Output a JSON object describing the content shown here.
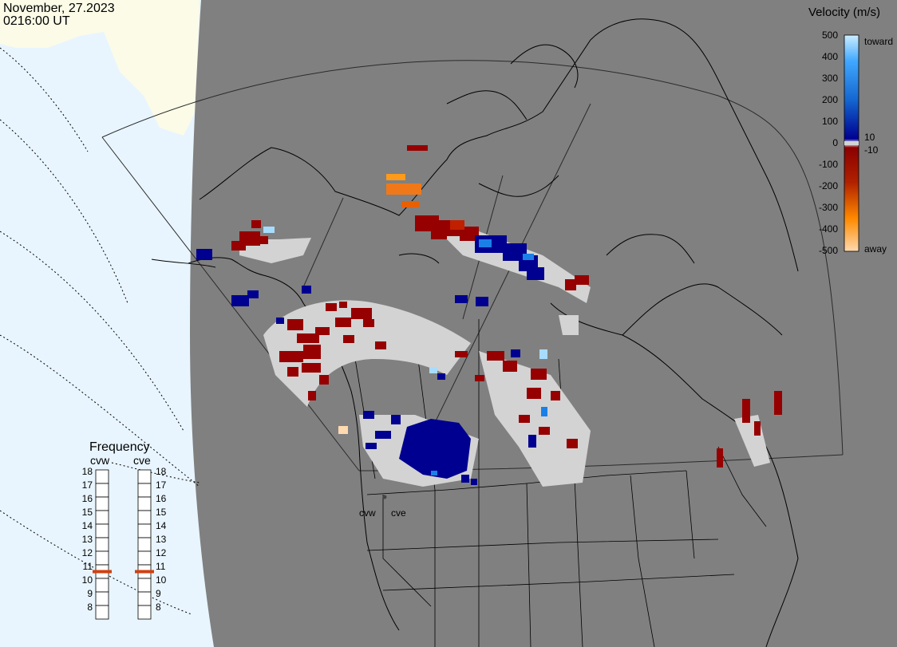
{
  "header": {
    "date": "November, 27.2023",
    "time": "0216:00 UT"
  },
  "legend": {
    "title": "Velocity (m/s)",
    "ticks": [
      "500",
      "400",
      "300",
      "200",
      "100",
      "10",
      "0",
      "-10",
      "-100",
      "-200",
      "-300",
      "-400",
      "-500"
    ],
    "toward_label": "toward",
    "away_label": "away",
    "colors": [
      "#ffd9b0",
      "#ff9a1a",
      "#e85a00",
      "#b02000",
      "#8a0000",
      "#000090",
      "#0040c0",
      "#1a80e8",
      "#a8dcff"
    ]
  },
  "frequency": {
    "title": "Frequency",
    "radars": [
      {
        "name": "cvw",
        "value": 11
      },
      {
        "name": "cve",
        "value": 11
      }
    ],
    "ticks": [
      "18",
      "17",
      "16",
      "15",
      "14",
      "13",
      "12",
      "11",
      "10",
      "9",
      "8"
    ],
    "marker_color": "#d04010"
  },
  "radar_sites": [
    {
      "name": "cvw"
    },
    {
      "name": "cve"
    }
  ],
  "colors": {
    "night": "#808080",
    "day": "#e8f5ff",
    "ice": "#fbfbe8",
    "low_velocity": "#d3d3d3",
    "away_dark": "#960000",
    "toward_dark": "#000090"
  }
}
